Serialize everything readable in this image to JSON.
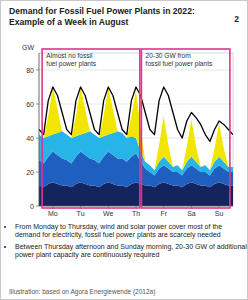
{
  "chart_data": {
    "type": "area",
    "title": "Demand for Fossil Fuel Power Plants in 2022: Example of a Week in August",
    "number": "2",
    "y_label": "GW",
    "stacked": true,
    "grid": true,
    "x": [
      0,
      4,
      8,
      12,
      16,
      20,
      24,
      28,
      32,
      36,
      40,
      44,
      48,
      52,
      56,
      60,
      64,
      68,
      72,
      76,
      80,
      84,
      88,
      92,
      96,
      100,
      104,
      108,
      112,
      116,
      120,
      124,
      128,
      132,
      136,
      140,
      144,
      148,
      152,
      156,
      160,
      164,
      168
    ],
    "xlim": [
      0,
      168
    ],
    "xticks": [
      {
        "value": 12,
        "label": "Mo"
      },
      {
        "value": 36,
        "label": "Tu"
      },
      {
        "value": 60,
        "label": "We"
      },
      {
        "value": 84,
        "label": "Th"
      },
      {
        "value": 108,
        "label": "Fr"
      },
      {
        "value": 132,
        "label": "Sa"
      },
      {
        "value": 156,
        "label": "Su"
      }
    ],
    "ylim": [
      0,
      90
    ],
    "yticks": [
      0,
      20,
      40,
      60,
      80
    ],
    "series": [
      {
        "type": "area",
        "color": "#14245e",
        "values": [
          12,
          11,
          13,
          14,
          13,
          12,
          12,
          11,
          13,
          14,
          13,
          12,
          12,
          11,
          13,
          14,
          13,
          12,
          12,
          11,
          13,
          14,
          13,
          12,
          12,
          11,
          13,
          14,
          13,
          12,
          12,
          11,
          13,
          14,
          13,
          12,
          12,
          11,
          13,
          14,
          13,
          12,
          12
        ]
      },
      {
        "type": "area",
        "color": "#1f5fbf",
        "values": [
          15,
          14,
          16,
          18,
          17,
          16,
          15,
          14,
          16,
          18,
          17,
          16,
          15,
          14,
          16,
          18,
          17,
          16,
          16,
          15,
          16,
          17,
          13,
          10,
          8,
          7,
          9,
          10,
          9,
          8,
          8,
          7,
          9,
          10,
          9,
          8,
          8,
          7,
          9,
          10,
          9,
          8,
          8
        ]
      },
      {
        "type": "area",
        "color": "#27b4e6",
        "values": [
          15,
          15,
          12,
          10,
          13,
          16,
          15,
          15,
          12,
          10,
          13,
          16,
          15,
          15,
          12,
          10,
          13,
          16,
          15,
          14,
          12,
          9,
          6,
          4,
          4,
          3,
          4,
          5,
          4,
          3,
          4,
          3,
          4,
          5,
          4,
          3,
          4,
          3,
          4,
          5,
          4,
          3,
          3
        ]
      },
      {
        "type": "area",
        "color": "#f2e600",
        "values": [
          0,
          0,
          12,
          28,
          14,
          0,
          0,
          0,
          12,
          28,
          14,
          0,
          0,
          0,
          12,
          28,
          14,
          0,
          0,
          0,
          12,
          28,
          14,
          0,
          0,
          0,
          10,
          24,
          10,
          0,
          0,
          0,
          9,
          22,
          9,
          0,
          0,
          0,
          8,
          20,
          8,
          0,
          0
        ]
      },
      {
        "type": "line",
        "color": "#000000",
        "values": [
          45,
          42,
          62,
          70,
          65,
          55,
          45,
          42,
          62,
          70,
          65,
          55,
          45,
          42,
          62,
          70,
          65,
          55,
          45,
          42,
          62,
          70,
          65,
          55,
          45,
          42,
          62,
          70,
          65,
          55,
          45,
          40,
          50,
          55,
          52,
          48,
          42,
          38,
          45,
          50,
          48,
          45,
          42
        ]
      }
    ],
    "annotations": [
      {
        "lines": [
          "Almost no fossil",
          "fuel power plants"
        ],
        "x": [
          2,
          88
        ],
        "color": "#e0338a"
      },
      {
        "lines": [
          "20-30 GW from",
          "fossil fuel power plants"
        ],
        "x": [
          88,
          166
        ],
        "color": "#e0338a"
      }
    ],
    "notes": [
      "From Monday to Thursday, wind and solar power cover most of the demand for electricity, fossil fuel power plants are scarcely needed",
      "Between Thursday afternoon and Sunday morning, 20-30 GW of additional power plant capacity are continuously required"
    ],
    "source": "Illustration: based on Agora Energiewende (2012a)"
  }
}
